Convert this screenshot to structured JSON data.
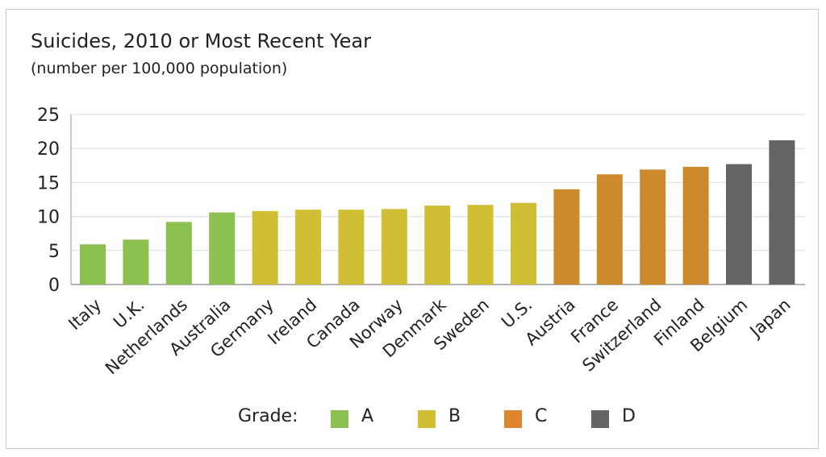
{
  "chart_data": {
    "type": "bar",
    "title": "Suicides, 2010 or Most Recent Year",
    "subtitle": "(number per 100,000 population)",
    "xlabel": "",
    "ylabel": "",
    "ylim": [
      0,
      25
    ],
    "yticks": [
      0,
      5,
      10,
      15,
      20,
      25
    ],
    "grid": true,
    "categories": [
      "Italy",
      "U.K.",
      "Netherlands",
      "Australia",
      "Germany",
      "Ireland",
      "Canada",
      "Norway",
      "Denmark",
      "Sweden",
      "U.S.",
      "Austria",
      "France",
      "Switzerland",
      "Finland",
      "Belgium",
      "Japan"
    ],
    "values": [
      5.9,
      6.6,
      9.2,
      10.6,
      10.8,
      11.0,
      11.0,
      11.1,
      11.6,
      11.7,
      12.0,
      14.0,
      16.2,
      16.9,
      17.3,
      17.7,
      21.2
    ],
    "grades": [
      "A",
      "A",
      "A",
      "A",
      "B",
      "B",
      "B",
      "B",
      "B",
      "B",
      "B",
      "C",
      "C",
      "C",
      "C",
      "D",
      "D"
    ],
    "legend": {
      "label": "Grade:",
      "position": "bottom",
      "entries": [
        {
          "grade": "A",
          "color": "#8cc04f"
        },
        {
          "grade": "B",
          "color": "#d0be34"
        },
        {
          "grade": "C",
          "color": "#cc8a2c"
        },
        {
          "grade": "D",
          "color": "#636466"
        }
      ]
    },
    "legend_swatch_C_color": "#e0862a"
  }
}
